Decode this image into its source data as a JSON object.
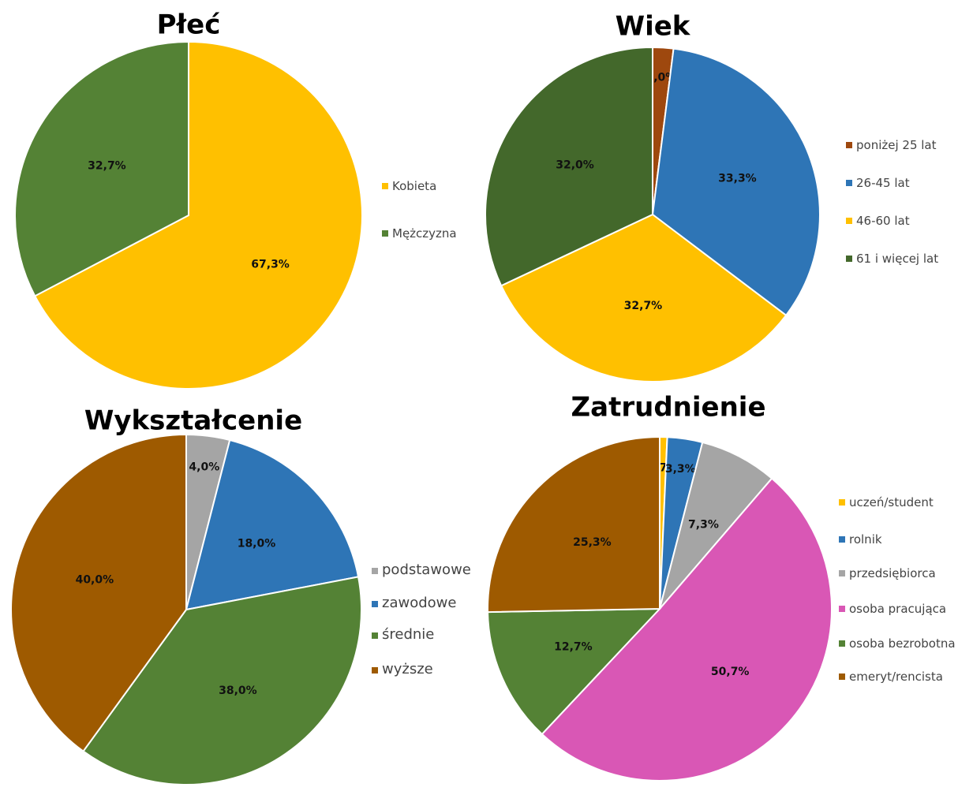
{
  "chart_data": [
    {
      "type": "pie",
      "title": "Płeć",
      "categories": [
        "Kobieta",
        "Mężczyzna"
      ],
      "values": [
        67.3,
        32.7
      ],
      "value_labels": [
        "67,3%",
        "32,7%"
      ],
      "colors": [
        "#ffc000",
        "#548235"
      ]
    },
    {
      "type": "pie",
      "title": "Wiek",
      "categories": [
        "poniżej 25 lat",
        "26-45 lat",
        "46-60 lat",
        "61 i więcej lat"
      ],
      "values": [
        2.0,
        33.3,
        32.7,
        32.0
      ],
      "value_labels": [
        "2,0%",
        "33,3%",
        "32,7%",
        "32,0%"
      ],
      "colors": [
        "#9e480e",
        "#2e75b6",
        "#ffc000",
        "#43682b"
      ]
    },
    {
      "type": "pie",
      "title": "Wykształcenie",
      "categories": [
        "podstawowe",
        "zawodowe",
        "średnie",
        "wyższe"
      ],
      "values": [
        4.0,
        18.0,
        38.0,
        40.0
      ],
      "value_labels": [
        "4,0%",
        "18,0%",
        "38,0%",
        "40,0%"
      ],
      "colors": [
        "#a5a5a5",
        "#2e75b6",
        "#548235",
        "#9e5a00"
      ]
    },
    {
      "type": "pie",
      "title": "Zatrudnienie",
      "categories": [
        "uczeń/student",
        "rolnik",
        "przedsiębiorca",
        "osoba pracująca",
        "osoba bezrobotna",
        "emeryt/rencista"
      ],
      "values": [
        0.7,
        3.3,
        7.3,
        50.7,
        12.7,
        25.3
      ],
      "value_labels": [
        "0,7%",
        "3,3%",
        "7,3%",
        "50,7%",
        "12,7%",
        "25,3%"
      ],
      "colors": [
        "#ffc000",
        "#2e75b6",
        "#a5a5a5",
        "#d957b5",
        "#548235",
        "#9e5a00"
      ]
    }
  ]
}
